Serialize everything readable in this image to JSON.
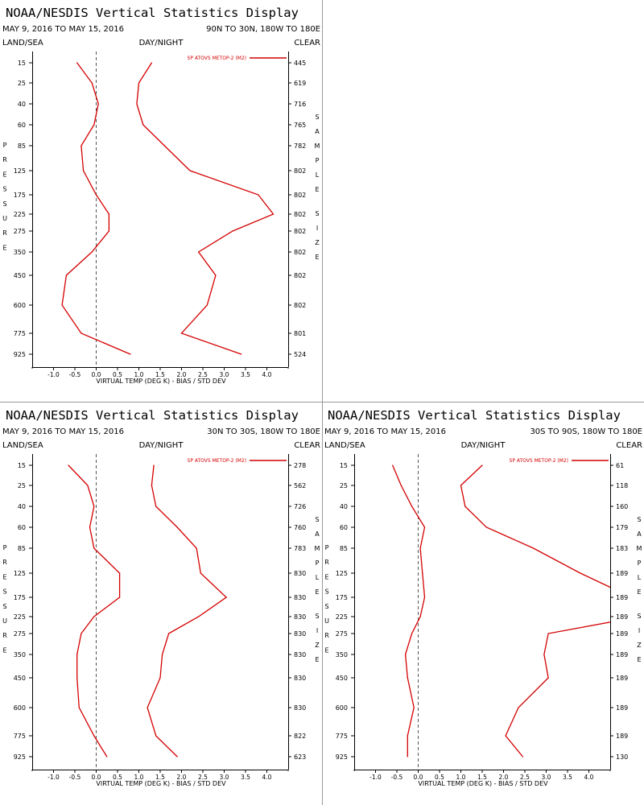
{
  "chart_data": [
    {
      "type": "line",
      "title": "NOAA/NESDIS Vertical Statistics Display",
      "date_range": "MAY 9, 2016 TO MAY 15, 2016",
      "region": "90N TO 30N, 180W TO 180E",
      "left_label": "LAND/SEA",
      "center_label": "DAY/NIGHT",
      "right_label": "CLEAR",
      "y_axis_label": "PRESSURE",
      "right_axis_label": "SAMPLE SIZE",
      "xlabel": "VIRTUAL TEMP (DEG K) - BIAS / STD DEV",
      "xlim": [
        -1.5,
        4.5
      ],
      "x_ticks": [
        "-1.0",
        "-0.5",
        "0.0",
        "0.5",
        "1.0",
        "1.5",
        "2.0",
        "2.5",
        "3.0",
        "3.5",
        "4.0"
      ],
      "pressure_levels": [
        "15",
        "25",
        "40",
        "60",
        "85",
        "125",
        "175",
        "225",
        "275",
        "350",
        "450",
        "600",
        "775",
        "925"
      ],
      "sample_sizes": [
        "445",
        "619",
        "716",
        "765",
        "782",
        "802",
        "802",
        "802",
        "802",
        "802",
        "802",
        "802",
        "801",
        "524"
      ],
      "legend": "SP ATOVS METOP-2 (M2)",
      "legend_position": "top-right",
      "color": "#d40000",
      "series": [
        {
          "name": "bias",
          "values": [
            -0.45,
            -0.1,
            0.05,
            -0.05,
            -0.35,
            -0.3,
            0.0,
            0.3,
            0.3,
            -0.1,
            -0.7,
            -0.8,
            -0.35,
            0.8
          ]
        },
        {
          "name": "std dev",
          "values": [
            1.3,
            1.0,
            0.95,
            1.1,
            1.6,
            2.2,
            3.8,
            4.15,
            3.2,
            2.4,
            2.8,
            2.6,
            2.0,
            3.4
          ]
        }
      ]
    },
    {
      "type": "line",
      "title": "NOAA/NESDIS Vertical Statistics Display",
      "date_range": "MAY 9, 2016 TO MAY 15, 2016",
      "region": "30N TO 30S, 180W TO 180E",
      "left_label": "LAND/SEA",
      "center_label": "DAY/NIGHT",
      "right_label": "CLEAR",
      "y_axis_label": "PRESSURE",
      "right_axis_label": "SAMPLE SIZE",
      "xlabel": "VIRTUAL TEMP (DEG K) - BIAS / STD DEV",
      "xlim": [
        -1.5,
        4.5
      ],
      "x_ticks": [
        "-1.0",
        "-0.5",
        "0.0",
        "0.5",
        "1.0",
        "1.5",
        "2.0",
        "2.5",
        "3.0",
        "3.5",
        "4.0"
      ],
      "pressure_levels": [
        "15",
        "25",
        "40",
        "60",
        "85",
        "125",
        "175",
        "225",
        "275",
        "350",
        "450",
        "600",
        "775",
        "925"
      ],
      "sample_sizes": [
        "278",
        "562",
        "726",
        "760",
        "783",
        "830",
        "830",
        "830",
        "830",
        "830",
        "830",
        "830",
        "822",
        "623"
      ],
      "legend": "SP ATOVS METOP-2 (M2)",
      "legend_position": "top-right",
      "color": "#d40000",
      "series": [
        {
          "name": "bias",
          "values": [
            -0.65,
            -0.2,
            -0.05,
            -0.15,
            -0.05,
            0.55,
            0.55,
            -0.05,
            -0.35,
            -0.45,
            -0.45,
            -0.4,
            -0.05,
            0.25
          ]
        },
        {
          "name": "std dev",
          "values": [
            1.35,
            1.3,
            1.4,
            1.9,
            2.35,
            2.45,
            3.05,
            2.4,
            1.7,
            1.55,
            1.5,
            1.2,
            1.4,
            1.9
          ]
        }
      ]
    },
    {
      "type": "line",
      "title": "NOAA/NESDIS Vertical Statistics Display",
      "date_range": "MAY 9, 2016 TO MAY 15, 2016",
      "region": "30S TO 90S, 180W TO 180E",
      "left_label": "LAND/SEA",
      "center_label": "DAY/NIGHT",
      "right_label": "CLEAR",
      "y_axis_label": "PRESSURE",
      "right_axis_label": "SAMPLE SIZE",
      "xlabel": "VIRTUAL TEMP (DEG K) - BIAS / STD DEV",
      "xlim": [
        -1.5,
        4.5
      ],
      "x_ticks": [
        "-1.0",
        "-0.5",
        "0.0",
        "0.5",
        "1.0",
        "1.5",
        "2.0",
        "2.5",
        "3.0",
        "3.5",
        "4.0"
      ],
      "pressure_levels": [
        "15",
        "25",
        "40",
        "60",
        "85",
        "125",
        "175",
        "225",
        "275",
        "350",
        "450",
        "600",
        "775",
        "925"
      ],
      "sample_sizes": [
        "61",
        "118",
        "160",
        "179",
        "183",
        "189",
        "189",
        "189",
        "189",
        "189",
        "189",
        "189",
        "189",
        "130"
      ],
      "legend": "SP ATOVS METOP-2 (M2)",
      "legend_position": "top-right",
      "color": "#d40000",
      "series": [
        {
          "name": "bias",
          "values": [
            -0.6,
            -0.4,
            -0.15,
            0.15,
            0.05,
            0.1,
            0.15,
            0.05,
            -0.15,
            -0.3,
            -0.25,
            -0.1,
            -0.25,
            -0.25
          ]
        },
        {
          "name": "std dev",
          "values": [
            1.5,
            1.0,
            1.1,
            1.6,
            2.7,
            3.8,
            5.0,
            5.2,
            3.05,
            2.95,
            3.05,
            2.35,
            2.05,
            2.45
          ]
        }
      ]
    }
  ]
}
